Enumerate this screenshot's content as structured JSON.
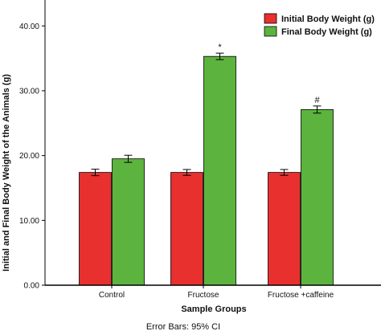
{
  "chart_data": {
    "type": "bar",
    "xlabel": "Sample Groups",
    "ylabel": "Initial and Final Body Weight of the Animals (g)",
    "ylim": [
      0,
      44
    ],
    "yticks": [
      "0.00",
      "10.00",
      "20.00",
      "30.00",
      "40.00"
    ],
    "categories": [
      "Control",
      "Fructose",
      "Fructose +caffeine"
    ],
    "series": [
      {
        "name": "Initial Body Weight (g)",
        "color": "#e8302f",
        "values": [
          17.4,
          17.4,
          17.4
        ],
        "error": [
          0.5,
          0.45,
          0.45
        ]
      },
      {
        "name": "Final Body Weight (g)",
        "color": "#5cb33e",
        "values": [
          19.5,
          35.3,
          27.1
        ],
        "error": [
          0.55,
          0.5,
          0.55
        ]
      }
    ],
    "annotations": [
      {
        "category": "Fructose",
        "series": 1,
        "text": "*"
      },
      {
        "category": "Fructose +caffeine",
        "series": 1,
        "text": "#"
      }
    ],
    "footnote": "Error Bars: 95% CI",
    "legend_position": "top-right",
    "grid": false
  }
}
